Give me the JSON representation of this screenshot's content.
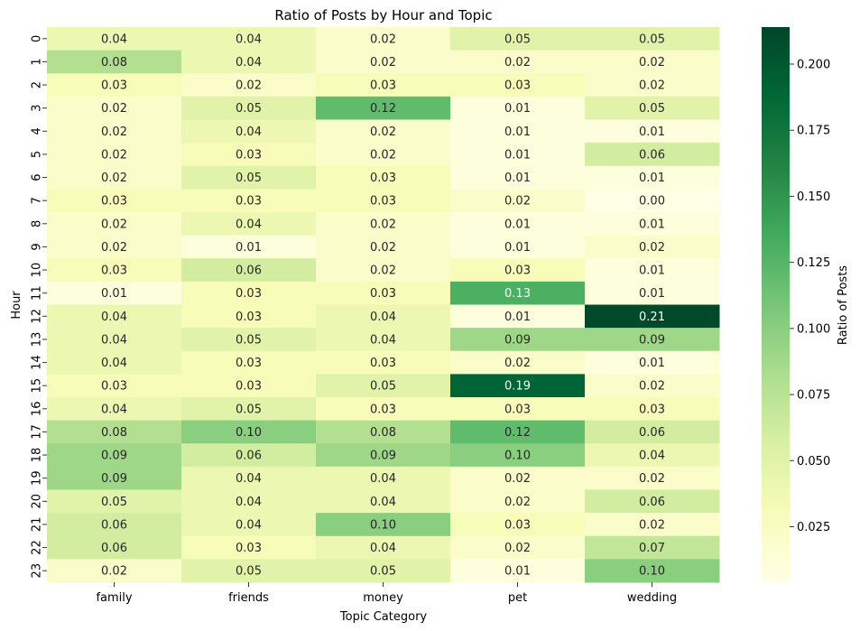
{
  "chart_data": {
    "type": "heatmap",
    "title": "Ratio of Posts by Hour and Topic",
    "xlabel": "Topic Category",
    "ylabel": "Hour",
    "colorbar_label": "Ratio of Posts",
    "colormap": "YlGn",
    "vmin": 0.004,
    "vmax": 0.214,
    "colorbar_ticks": [
      "0.025",
      "0.050",
      "0.075",
      "0.100",
      "0.125",
      "0.150",
      "0.175",
      "0.200"
    ],
    "columns": [
      "family",
      "friends",
      "money",
      "pet",
      "wedding"
    ],
    "rows": [
      "0",
      "1",
      "2",
      "3",
      "4",
      "5",
      "6",
      "7",
      "8",
      "9",
      "10",
      "11",
      "12",
      "13",
      "14",
      "15",
      "16",
      "17",
      "18",
      "19",
      "20",
      "21",
      "22",
      "23"
    ],
    "values": [
      [
        0.04,
        0.04,
        0.02,
        0.05,
        0.05
      ],
      [
        0.08,
        0.04,
        0.02,
        0.02,
        0.02
      ],
      [
        0.03,
        0.02,
        0.03,
        0.03,
        0.02
      ],
      [
        0.02,
        0.05,
        0.12,
        0.01,
        0.05
      ],
      [
        0.02,
        0.04,
        0.02,
        0.01,
        0.01
      ],
      [
        0.02,
        0.03,
        0.02,
        0.01,
        0.06
      ],
      [
        0.02,
        0.05,
        0.03,
        0.01,
        0.01
      ],
      [
        0.03,
        0.03,
        0.03,
        0.02,
        0.0
      ],
      [
        0.02,
        0.04,
        0.02,
        0.01,
        0.01
      ],
      [
        0.02,
        0.01,
        0.02,
        0.01,
        0.02
      ],
      [
        0.03,
        0.06,
        0.02,
        0.03,
        0.01
      ],
      [
        0.01,
        0.03,
        0.03,
        0.13,
        0.01
      ],
      [
        0.04,
        0.03,
        0.04,
        0.01,
        0.21
      ],
      [
        0.04,
        0.05,
        0.04,
        0.09,
        0.09
      ],
      [
        0.04,
        0.03,
        0.03,
        0.02,
        0.01
      ],
      [
        0.03,
        0.03,
        0.05,
        0.19,
        0.02
      ],
      [
        0.04,
        0.05,
        0.03,
        0.03,
        0.03
      ],
      [
        0.08,
        0.1,
        0.08,
        0.12,
        0.06
      ],
      [
        0.09,
        0.06,
        0.09,
        0.1,
        0.04
      ],
      [
        0.09,
        0.04,
        0.04,
        0.02,
        0.02
      ],
      [
        0.05,
        0.04,
        0.04,
        0.02,
        0.06
      ],
      [
        0.06,
        0.04,
        0.1,
        0.03,
        0.02
      ],
      [
        0.06,
        0.03,
        0.04,
        0.02,
        0.07
      ],
      [
        0.02,
        0.05,
        0.05,
        0.01,
        0.1
      ]
    ],
    "colors": {
      "low": "#ffffe5",
      "high": "#004529",
      "text_dark": "#262626",
      "text_light": "#ffffff"
    },
    "legend_placement": "right",
    "grid": false
  }
}
